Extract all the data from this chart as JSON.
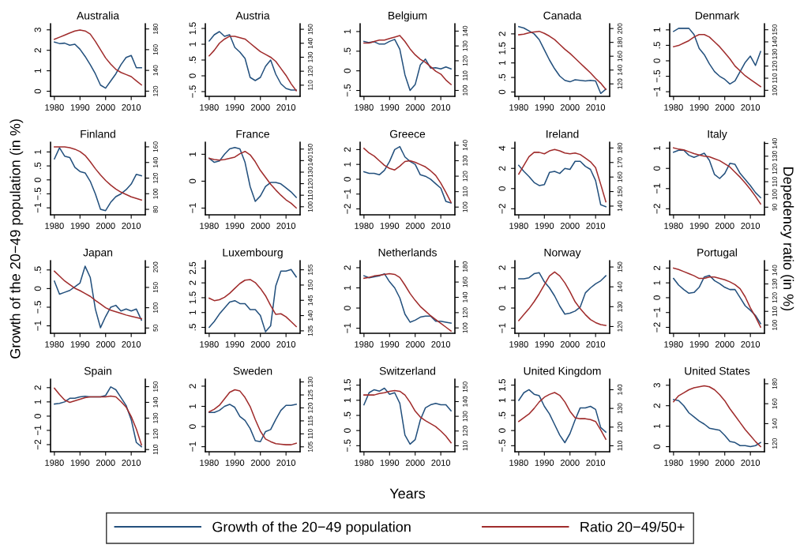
{
  "chart_data": [
    {
      "type": "line",
      "title": "Australia",
      "legend": "bottom",
      "x": [
        1980,
        1982,
        1984,
        1986,
        1988,
        1990,
        1992,
        1994,
        1996,
        1998,
        2000,
        2002,
        2004,
        2006,
        2008,
        2010,
        2012,
        2014
      ],
      "xlim": [
        1978.5,
        2015.5
      ],
      "xticks": [
        1980,
        1990,
        2000,
        2010
      ],
      "ylim": [
        -0.25,
        3.3
      ],
      "yticks": [
        0,
        1,
        2,
        3
      ],
      "y2lim": [
        115,
        185
      ],
      "y2ticks": [
        120,
        140,
        160,
        180
      ],
      "series": [
        {
          "name": "Growth of the 20−49 population",
          "color": "#23507d",
          "values": [
            2.4,
            2.33,
            2.35,
            2.25,
            2.3,
            2.05,
            1.7,
            1.3,
            0.85,
            0.3,
            0.15,
            0.5,
            0.85,
            1.3,
            1.65,
            1.75,
            1.15,
            1.15
          ]
        },
        {
          "name": "Ratio 20−49/50+",
          "color": "#a02c2c",
          "axis": "y2",
          "values": [
            170,
            172,
            174,
            176,
            178,
            179,
            178,
            175,
            168,
            160,
            152,
            146,
            141,
            138,
            136,
            134,
            130,
            126
          ]
        }
      ]
    },
    {
      "type": "line",
      "title": "Austria",
      "x": [
        1980,
        1982,
        1984,
        1986,
        1988,
        1990,
        1992,
        1994,
        1996,
        1998,
        2000,
        2002,
        2004,
        2006,
        2008,
        2010,
        2012,
        2014
      ],
      "xlim": [
        1978.5,
        2015.5
      ],
      "xticks": [
        1980,
        1990,
        2000,
        2010
      ],
      "ylim": [
        -0.65,
        1.65
      ],
      "yticks": [
        {
          "value": -0.5,
          "label": "−.5"
        },
        0,
        {
          "value": 0.5,
          "label": ".5"
        },
        1,
        1.5
      ],
      "y2lim": [
        102,
        154
      ],
      "y2ticks": [
        110,
        120,
        130,
        140,
        150
      ],
      "series": [
        {
          "color": "#23507d",
          "values": [
            1.1,
            1.3,
            1.4,
            1.25,
            1.3,
            0.9,
            0.75,
            0.55,
            -0.05,
            -0.15,
            -0.05,
            0.3,
            0.5,
            0.05,
            -0.25,
            -0.4,
            -0.45,
            -0.45
          ]
        },
        {
          "color": "#a02c2c",
          "axis": "y2",
          "values": [
            131,
            135,
            140,
            143,
            145,
            145,
            144,
            143,
            140,
            137,
            134,
            132,
            130,
            127,
            122,
            117,
            111,
            106
          ]
        }
      ]
    },
    {
      "type": "line",
      "title": "Belgium",
      "x": [
        1980,
        1982,
        1984,
        1986,
        1988,
        1990,
        1992,
        1994,
        1996,
        1998,
        2000,
        2002,
        2004,
        2006,
        2008,
        2010,
        2012,
        2014
      ],
      "xlim": [
        1978.5,
        2015.5
      ],
      "xticks": [
        1980,
        1990,
        2000,
        2010
      ],
      "ylim": [
        -0.65,
        1.2
      ],
      "yticks": [
        {
          "value": -0.5,
          "label": "−.5"
        },
        0,
        {
          "value": 0.5,
          "label": ".5"
        },
        1
      ],
      "y2lim": [
        96,
        145
      ],
      "y2ticks": [
        100,
        110,
        120,
        130,
        140
      ],
      "series": [
        {
          "color": "#23507d",
          "values": [
            0.75,
            0.72,
            0.74,
            0.68,
            0.68,
            0.75,
            0.8,
            0.55,
            -0.1,
            -0.5,
            -0.35,
            0.15,
            0.3,
            0.07,
            0.08,
            0.05,
            0.1,
            0.05
          ]
        },
        {
          "color": "#a02c2c",
          "axis": "y2",
          "values": [
            132,
            132,
            133,
            134,
            134,
            135,
            136,
            137,
            133,
            128,
            124,
            121,
            119,
            116,
            113,
            111,
            107,
            104
          ]
        }
      ]
    },
    {
      "type": "line",
      "title": "Canada",
      "x": [
        1980,
        1982,
        1984,
        1986,
        1988,
        1990,
        1992,
        1994,
        1996,
        1998,
        2000,
        2002,
        2004,
        2006,
        2008,
        2010,
        2012,
        2014
      ],
      "xlim": [
        1978.5,
        2015.5
      ],
      "xticks": [
        1980,
        1990,
        2000,
        2010
      ],
      "ylim": [
        -0.15,
        2.35
      ],
      "yticks": [
        0,
        {
          "value": 0.5,
          "label": ".5"
        },
        1,
        1.5,
        2
      ],
      "y2lim": [
        102,
        207
      ],
      "y2ticks": [
        120,
        140,
        160,
        180,
        200
      ],
      "series": [
        {
          "color": "#23507d",
          "values": [
            2.25,
            2.2,
            2.1,
            2.0,
            1.8,
            1.45,
            1.1,
            0.8,
            0.55,
            0.4,
            0.35,
            0.42,
            0.4,
            0.38,
            0.4,
            0.38,
            -0.05,
            0.1
          ]
        },
        {
          "color": "#a02c2c",
          "axis": "y2",
          "values": [
            191,
            192,
            194,
            195,
            196,
            193,
            189,
            184,
            177,
            170,
            164,
            157,
            150,
            143,
            136,
            128,
            121,
            112
          ]
        }
      ]
    },
    {
      "type": "line",
      "title": "Denmark",
      "x": [
        1980,
        1982,
        1984,
        1986,
        1988,
        1990,
        1992,
        1994,
        1996,
        1998,
        2000,
        2002,
        2004,
        2006,
        2008,
        2010,
        2012,
        2014
      ],
      "xlim": [
        1978.5,
        2015.5
      ],
      "xticks": [
        1980,
        1990,
        2000,
        2010
      ],
      "ylim": [
        -1.15,
        1.2
      ],
      "yticks": [
        {
          "value": -1,
          "label": "−1"
        },
        {
          "value": -0.5,
          "label": "−.5"
        },
        0,
        {
          "value": 0.5,
          "label": ".5"
        },
        1
      ],
      "y2lim": [
        95,
        155
      ],
      "y2ticks": [
        100,
        110,
        120,
        130,
        140,
        150
      ],
      "series": [
        {
          "color": "#23507d",
          "values": [
            0.95,
            1.05,
            1.05,
            1.05,
            0.85,
            0.4,
            0.2,
            -0.1,
            -0.35,
            -0.5,
            -0.6,
            -0.75,
            -0.65,
            -0.35,
            -0.05,
            0.15,
            -0.15,
            0.3
          ]
        },
        {
          "color": "#a02c2c",
          "axis": "y2",
          "values": [
            136,
            137,
            139,
            141,
            144,
            146,
            146,
            144,
            140,
            136,
            131,
            126,
            120,
            116,
            112,
            109,
            106,
            103
          ]
        }
      ]
    },
    {
      "type": "line",
      "title": "Finland",
      "x": [
        1980,
        1982,
        1984,
        1986,
        1988,
        1990,
        1992,
        1994,
        1996,
        1998,
        2000,
        2002,
        2004,
        2006,
        2008,
        2010,
        2012,
        2014
      ],
      "xlim": [
        1978.5,
        2015.5
      ],
      "xticks": [
        1980,
        1990,
        2000,
        2010
      ],
      "ylim": [
        -1.25,
        1.35
      ],
      "yticks": [
        {
          "value": -1,
          "label": "−1"
        },
        {
          "value": -0.5,
          "label": "−.5"
        },
        0,
        {
          "value": 0.5,
          "label": ".5"
        },
        1
      ],
      "y2lim": [
        73,
        166
      ],
      "y2ticks": [
        80,
        100,
        120,
        140,
        160
      ],
      "series": [
        {
          "color": "#23507d",
          "values": [
            0.75,
            1.15,
            0.85,
            0.8,
            0.45,
            0.3,
            0.25,
            -0.05,
            -0.5,
            -1.05,
            -1.1,
            -0.8,
            -0.6,
            -0.5,
            -0.35,
            -0.15,
            0.2,
            0.15
          ]
        },
        {
          "color": "#a02c2c",
          "axis": "y2",
          "values": [
            160,
            160,
            160,
            159,
            157,
            154,
            149,
            141,
            132,
            124,
            117,
            111,
            106,
            102,
            99,
            96,
            94,
            92
          ]
        }
      ]
    },
    {
      "type": "line",
      "title": "France",
      "x": [
        1980,
        1982,
        1984,
        1986,
        1988,
        1990,
        1992,
        1994,
        1996,
        1998,
        2000,
        2002,
        2004,
        2006,
        2008,
        2010,
        2012,
        2014
      ],
      "xlim": [
        1978.5,
        2015.5
      ],
      "xticks": [
        1980,
        1990,
        2000,
        2010
      ],
      "ylim": [
        -1.25,
        1.45
      ],
      "yticks": [
        {
          "value": -1,
          "label": "−1"
        },
        0,
        1
      ],
      "y2lim": [
        93,
        156
      ],
      "y2ticks": [
        100,
        110,
        120,
        130,
        140,
        150
      ],
      "series": [
        {
          "color": "#23507d",
          "values": [
            0.85,
            0.7,
            0.75,
            1.0,
            1.2,
            1.25,
            1.2,
            0.7,
            -0.2,
            -0.75,
            -0.55,
            -0.2,
            -0.05,
            -0.05,
            -0.1,
            -0.25,
            -0.4,
            -0.6
          ]
        },
        {
          "color": "#a02c2c",
          "axis": "y2",
          "values": [
            142,
            141,
            140.5,
            141,
            142,
            143,
            146,
            148,
            145,
            139,
            131.5,
            125.5,
            119.5,
            114.5,
            110,
            106,
            103,
            99
          ]
        }
      ]
    },
    {
      "type": "line",
      "title": "Greece",
      "x": [
        1980,
        1982,
        1984,
        1986,
        1988,
        1990,
        1992,
        1994,
        1996,
        1998,
        2000,
        2002,
        2004,
        2006,
        2008,
        2010,
        2012,
        2014
      ],
      "xlim": [
        1978.5,
        2015.5
      ],
      "xticks": [
        1980,
        1990,
        2000,
        2010
      ],
      "ylim": [
        -2.4,
        2.5
      ],
      "yticks": [
        {
          "value": -2,
          "label": "−2"
        },
        {
          "value": -1,
          "label": "−1"
        },
        0,
        1,
        2
      ],
      "y2lim": [
        95,
        142
      ],
      "y2ticks": [
        100,
        110,
        120,
        130,
        140
      ],
      "series": [
        {
          "color": "#23507d",
          "values": [
            0.5,
            0.4,
            0.4,
            0.3,
            0.6,
            1.2,
            2.0,
            2.2,
            1.5,
            1.2,
            1.0,
            0.3,
            0.2,
            0.0,
            -0.3,
            -0.6,
            -1.5,
            -1.6
          ]
        },
        {
          "color": "#a02c2c",
          "axis": "y2",
          "values": [
            138,
            135,
            133,
            130,
            127,
            125,
            124,
            126.5,
            129.5,
            130,
            129,
            127.5,
            126,
            123.5,
            120.5,
            115.5,
            109.5,
            103
          ]
        }
      ]
    },
    {
      "type": "line",
      "title": "Ireland",
      "x": [
        1980,
        1982,
        1984,
        1986,
        1988,
        1990,
        1992,
        1994,
        1996,
        1998,
        2000,
        2002,
        2004,
        2006,
        2008,
        2010,
        2012,
        2014
      ],
      "xlim": [
        1978.5,
        2015.5
      ],
      "xticks": [
        1980,
        1990,
        2000,
        2010
      ],
      "ylim": [
        -2.6,
        4.6
      ],
      "yticks": [
        {
          "value": -2,
          "label": "−2"
        },
        0,
        2,
        4
      ],
      "y2lim": [
        134,
        184
      ],
      "y2ticks": [
        140,
        150,
        160,
        170,
        180
      ],
      "series": [
        {
          "color": "#23507d",
          "values": [
            2.3,
            1.7,
            1.2,
            0.6,
            0.3,
            0.4,
            1.6,
            1.7,
            1.5,
            2.0,
            1.9,
            2.7,
            2.7,
            2.2,
            1.9,
            0.8,
            -1.6,
            -1.8
          ]
        },
        {
          "color": "#a02c2c",
          "axis": "y2",
          "values": [
            162,
            168,
            174,
            177,
            177,
            176,
            178,
            179,
            178,
            176.5,
            176,
            176.5,
            175.5,
            173,
            170.5,
            166.5,
            155,
            143
          ]
        }
      ]
    },
    {
      "type": "line",
      "title": "Italy",
      "x": [
        1980,
        1982,
        1984,
        1986,
        1988,
        1990,
        1992,
        1994,
        1996,
        1998,
        2000,
        2002,
        2004,
        2006,
        2008,
        2010,
        2012,
        2014
      ],
      "xlim": [
        1978.5,
        2015.5
      ],
      "xticks": [
        1980,
        1990,
        2000,
        2010
      ],
      "ylim": [
        -2.3,
        1.3
      ],
      "yticks": [
        {
          "value": -2,
          "label": "−2"
        },
        {
          "value": -1,
          "label": "−1"
        },
        0,
        1
      ],
      "y2lim": [
        84,
        141
      ],
      "y2ticks": [
        90,
        100,
        110,
        120,
        130,
        140
      ],
      "series": [
        {
          "color": "#23507d",
          "values": [
            0.8,
            0.9,
            0.9,
            0.65,
            0.55,
            0.65,
            0.75,
            0.4,
            -0.3,
            -0.5,
            -0.25,
            0.25,
            0.2,
            -0.25,
            -0.55,
            -0.85,
            -1.2,
            -1.45
          ]
        },
        {
          "color": "#a02c2c",
          "axis": "y2",
          "values": [
            136.5,
            135.5,
            135,
            133.5,
            132,
            131,
            130,
            129.5,
            128,
            126.5,
            124,
            121.5,
            117.5,
            113.5,
            109,
            104,
            98.5,
            92.5
          ]
        }
      ]
    },
    {
      "type": "line",
      "title": "Japan",
      "ylabel": "Growth of the 20−49 population (in %)",
      "x": [
        1980,
        1982,
        1984,
        1986,
        1988,
        1990,
        1992,
        1994,
        1996,
        1998,
        2000,
        2002,
        2004,
        2006,
        2008,
        2010,
        2012,
        2014
      ],
      "xlim": [
        1978.5,
        2015.5
      ],
      "xticks": [
        1980,
        1990,
        2000,
        2010
      ],
      "ylim": [
        -1.2,
        0.75
      ],
      "yticks": [
        {
          "value": -1,
          "label": "−1"
        },
        {
          "value": -0.5,
          "label": "−.5"
        },
        0,
        {
          "value": 0.5,
          "label": ".5"
        }
      ],
      "y2lim": [
        37,
        216
      ],
      "y2ticks": [
        50,
        100,
        150,
        200
      ],
      "series": [
        {
          "color": "#23507d",
          "values": [
            0.2,
            -0.15,
            -0.1,
            -0.05,
            0.05,
            0.15,
            0.6,
            0.3,
            -0.55,
            -1.05,
            -0.75,
            -0.5,
            -0.45,
            -0.6,
            -0.55,
            -0.6,
            -0.55,
            -0.85
          ]
        },
        {
          "color": "#a02c2c",
          "axis": "y2",
          "values": [
            190,
            178,
            166,
            157,
            148,
            142,
            135,
            128,
            118,
            109,
            100,
            94,
            90,
            86,
            82,
            79,
            76,
            73
          ]
        }
      ]
    },
    {
      "type": "line",
      "title": "Luxembourg",
      "x": [
        1980,
        1982,
        1984,
        1986,
        1988,
        1990,
        1992,
        1994,
        1996,
        1998,
        2000,
        2002,
        2004,
        2006,
        2008,
        2010,
        2012,
        2014
      ],
      "xlim": [
        1978.5,
        2015.5
      ],
      "xticks": [
        1980,
        1990,
        2000,
        2010
      ],
      "ylim": [
        0.3,
        2.75
      ],
      "yticks": [
        {
          "value": 0.5,
          "label": ".5"
        },
        1,
        1.5,
        2,
        2.5
      ],
      "y2lim": [
        134.2,
        158
      ],
      "y2ticks": [
        135,
        140,
        145,
        150,
        155
      ],
      "series": [
        {
          "color": "#23507d",
          "values": [
            0.5,
            0.7,
            0.95,
            1.15,
            1.35,
            1.4,
            1.3,
            1.3,
            1.1,
            1.1,
            0.9,
            0.35,
            0.55,
            1.9,
            2.4,
            2.4,
            2.45,
            2.2
          ]
        },
        {
          "color": "#a02c2c",
          "axis": "y2",
          "values": [
            145.7,
            144.9,
            145.2,
            146,
            147.3,
            148.9,
            150.5,
            151.6,
            151.8,
            150.8,
            148.9,
            146.5,
            143.3,
            140.4,
            140.6,
            139.6,
            138,
            136.4
          ]
        }
      ]
    },
    {
      "type": "line",
      "title": "Netherlands",
      "x": [
        1980,
        1982,
        1984,
        1986,
        1988,
        1990,
        1992,
        1994,
        1996,
        1998,
        2000,
        2002,
        2004,
        2006,
        2008,
        2010,
        2012,
        2014
      ],
      "xlim": [
        1978.5,
        2015.5
      ],
      "xticks": [
        1980,
        1990,
        2000,
        2010
      ],
      "ylim": [
        -1.25,
        2.35
      ],
      "yticks": [
        {
          "value": -1,
          "label": "−1"
        },
        0,
        1,
        2
      ],
      "y2lim": [
        93,
        188
      ],
      "y2ticks": [
        100,
        120,
        140,
        160,
        180
      ],
      "series": [
        {
          "color": "#23507d",
          "values": [
            1.6,
            1.5,
            1.55,
            1.6,
            1.7,
            1.3,
            1.0,
            0.5,
            -0.3,
            -0.7,
            -0.6,
            -0.45,
            -0.4,
            -0.4,
            -0.65,
            -0.65,
            -0.7,
            -0.75
          ]
        },
        {
          "color": "#a02c2c",
          "axis": "y2",
          "values": [
            165,
            166,
            168,
            169,
            170,
            171,
            170,
            166,
            156,
            145,
            136,
            128,
            122,
            116,
            111,
            106,
            101,
            96
          ]
        }
      ]
    },
    {
      "type": "line",
      "title": "Norway",
      "x": [
        1980,
        1982,
        1984,
        1986,
        1988,
        1990,
        1992,
        1994,
        1996,
        1998,
        2000,
        2002,
        2004,
        2006,
        2008,
        2010,
        2012,
        2014
      ],
      "xlim": [
        1978.5,
        2015.5
      ],
      "xticks": [
        1980,
        1990,
        2000,
        2010
      ],
      "ylim": [
        -1.25,
        2.35
      ],
      "yticks": [
        {
          "value": -1,
          "label": "−1"
        },
        0,
        1,
        2
      ],
      "y2lim": [
        116.6,
        153.2
      ],
      "y2ticks": [
        120,
        130,
        140,
        150
      ],
      "series": [
        {
          "color": "#23507d",
          "values": [
            1.45,
            1.45,
            1.5,
            1.7,
            1.75,
            1.3,
            1.0,
            0.6,
            0.1,
            -0.3,
            -0.25,
            -0.15,
            0.05,
            0.75,
            1.0,
            1.2,
            1.35,
            1.6
          ]
        },
        {
          "color": "#a02c2c",
          "axis": "y2",
          "values": [
            123,
            126,
            129,
            132.5,
            136.5,
            141,
            145.5,
            147.5,
            145.5,
            142,
            137.5,
            132.5,
            129,
            126,
            123.5,
            122,
            121,
            120.5
          ]
        }
      ]
    },
    {
      "type": "line",
      "title": "Portugal",
      "y2label": "Depedency ratio (in %)",
      "x": [
        1980,
        1982,
        1984,
        1986,
        1988,
        1990,
        1992,
        1994,
        1996,
        1998,
        2000,
        2002,
        2004,
        2006,
        2008,
        2010,
        2012,
        2014
      ],
      "xlim": [
        1978.5,
        2015.5
      ],
      "xticks": [
        1980,
        1990,
        2000,
        2010
      ],
      "ylim": [
        -2.4,
        2.5
      ],
      "yticks": [
        {
          "value": -2,
          "label": "−2"
        },
        {
          "value": -1,
          "label": "−1"
        },
        0,
        1,
        2
      ],
      "y2lim": [
        94,
        147
      ],
      "y2ticks": [
        100,
        110,
        120,
        130,
        140
      ],
      "series": [
        {
          "color": "#23507d",
          "values": [
            1.3,
            0.85,
            0.55,
            0.3,
            0.35,
            0.7,
            1.4,
            1.5,
            1.15,
            0.95,
            0.7,
            0.55,
            0.55,
            0.0,
            -0.55,
            -0.85,
            -1.2,
            -1.75
          ]
        },
        {
          "color": "#a02c2c",
          "axis": "y2",
          "values": [
            141.5,
            140.5,
            139,
            137.5,
            136,
            134,
            134,
            135,
            135,
            134,
            133,
            131.5,
            129.5,
            126.5,
            120.5,
            112.5,
            106,
            98.5
          ]
        }
      ]
    },
    {
      "type": "line",
      "title": "Spain",
      "x": [
        1980,
        1982,
        1984,
        1986,
        1988,
        1990,
        1992,
        1994,
        1996,
        1998,
        2000,
        2002,
        2004,
        2006,
        2008,
        2010,
        2012,
        2014
      ],
      "xlim": [
        1978.5,
        2015.5
      ],
      "xticks": [
        1980,
        1990,
        2000,
        2010
      ],
      "ylim": [
        -2.5,
        2.6
      ],
      "yticks": [
        {
          "value": -2,
          "label": "−2"
        },
        {
          "value": -1,
          "label": "−1"
        },
        0,
        1,
        2
      ],
      "y2lim": [
        108.6,
        154.8
      ],
      "y2ticks": [
        110,
        120,
        130,
        140,
        150
      ],
      "series": [
        {
          "color": "#23507d",
          "values": [
            0.85,
            0.9,
            1.0,
            1.25,
            1.25,
            1.35,
            1.4,
            1.35,
            1.35,
            1.35,
            1.45,
            2.05,
            1.85,
            1.3,
            0.75,
            -0.25,
            -1.85,
            -2.15
          ]
        },
        {
          "color": "#a02c2c",
          "axis": "y2",
          "values": [
            149,
            145,
            141.5,
            140,
            141,
            142,
            143,
            143.5,
            143.5,
            143.5,
            143.5,
            144,
            143.5,
            140.5,
            137,
            131,
            123,
            113
          ]
        }
      ]
    },
    {
      "type": "line",
      "title": "Sweden",
      "x": [
        1980,
        1982,
        1984,
        1986,
        1988,
        1990,
        1992,
        1994,
        1996,
        1998,
        2000,
        2002,
        2004,
        2006,
        2008,
        2010,
        2012,
        2014
      ],
      "xlim": [
        1978.5,
        2015.5
      ],
      "xticks": [
        1980,
        1990,
        2000,
        2010
      ],
      "ylim": [
        -1.25,
        2.35
      ],
      "yticks": [
        {
          "value": -1,
          "label": "−1"
        },
        0,
        1,
        2
      ],
      "y2lim": [
        103.1,
        131.1
      ],
      "y2ticks": [
        105,
        110,
        115,
        120,
        125,
        130
      ],
      "series": [
        {
          "color": "#23507d",
          "values": [
            0.7,
            0.7,
            0.8,
            1.0,
            1.1,
            0.95,
            0.5,
            0.3,
            -0.1,
            -0.7,
            -0.75,
            -0.25,
            -0.15,
            0.35,
            0.8,
            1.05,
            1.05,
            1.1
          ]
        },
        {
          "color": "#a02c2c",
          "axis": "y2",
          "values": [
            118.5,
            119.5,
            121,
            123.5,
            126,
            127,
            126.5,
            124,
            120.5,
            115.5,
            111,
            108,
            107,
            106.2,
            106,
            105.8,
            105.8,
            106.4
          ]
        }
      ]
    },
    {
      "type": "line",
      "title": "Switzerland",
      "xlabel": "Years",
      "x": [
        1980,
        1982,
        1984,
        1986,
        1988,
        1990,
        1992,
        1994,
        1996,
        1998,
        2000,
        2002,
        2004,
        2006,
        2008,
        2010,
        2012,
        2014
      ],
      "xlim": [
        1978.5,
        2015.5
      ],
      "xticks": [
        1980,
        1990,
        2000,
        2010
      ],
      "ylim": [
        -0.7,
        1.7
      ],
      "yticks": [
        {
          "value": -0.5,
          "label": "−.5"
        },
        0,
        {
          "value": 0.5,
          "label": ".5"
        },
        1,
        1.5
      ],
      "y2lim": [
        105.9,
        155.3
      ],
      "y2ticks": [
        110,
        120,
        130,
        140,
        150
      ],
      "series": [
        {
          "color": "#23507d",
          "values": [
            0.85,
            1.25,
            1.35,
            1.3,
            1.4,
            1.2,
            1.25,
            0.9,
            -0.15,
            -0.45,
            -0.3,
            0.35,
            0.75,
            0.85,
            0.9,
            0.85,
            0.85,
            0.65
          ]
        },
        {
          "color": "#a02c2c",
          "axis": "y2",
          "values": [
            144.5,
            144.5,
            144.5,
            145.5,
            146,
            147,
            147.5,
            147,
            144.5,
            139.5,
            133.5,
            129.5,
            127,
            125,
            123,
            120,
            116.5,
            112
          ]
        }
      ]
    },
    {
      "type": "line",
      "title": "United Kingdom",
      "x": [
        1980,
        1982,
        1984,
        1986,
        1988,
        1990,
        1992,
        1994,
        1996,
        1998,
        2000,
        2002,
        2004,
        2006,
        2008,
        2010,
        2012,
        2014
      ],
      "xlim": [
        1978.5,
        2015.5
      ],
      "xticks": [
        1980,
        1990,
        2000,
        2010
      ],
      "ylim": [
        -0.7,
        1.7
      ],
      "yticks": [
        {
          "value": -0.5,
          "label": "−.5"
        },
        0,
        {
          "value": 0.5,
          "label": ".5"
        },
        1,
        1.5
      ],
      "y2lim": [
        106.8,
        145.7
      ],
      "y2ticks": [
        110,
        120,
        130,
        140
      ],
      "series": [
        {
          "color": "#23507d",
          "values": [
            1.0,
            1.25,
            1.35,
            1.2,
            1.15,
            0.8,
            0.55,
            0.2,
            -0.15,
            -0.4,
            -0.1,
            0.35,
            0.75,
            0.75,
            0.8,
            0.7,
            0.1,
            -0.05
          ]
        },
        {
          "color": "#a02c2c",
          "axis": "y2",
          "values": [
            123,
            125,
            127,
            130,
            133.5,
            136,
            137.5,
            138.5,
            137,
            133.5,
            128.5,
            125,
            124.5,
            124.5,
            124,
            123,
            118.5,
            113.5
          ]
        }
      ]
    },
    {
      "type": "line",
      "title": "United States",
      "x": [
        1980,
        1982,
        1984,
        1986,
        1988,
        1990,
        1992,
        1994,
        1996,
        1998,
        2000,
        2002,
        2004,
        2006,
        2008,
        2010,
        2012,
        2014
      ],
      "xlim": [
        1978.5,
        2015.5
      ],
      "xticks": [
        1980,
        1990,
        2000,
        2010
      ],
      "ylim": [
        -0.25,
        3.3
      ],
      "yticks": [
        0,
        1,
        2,
        3
      ],
      "y2lim": [
        111.8,
        184.7
      ],
      "y2ticks": [
        120,
        140,
        160,
        180
      ],
      "series": [
        {
          "color": "#23507d",
          "values": [
            2.3,
            2.25,
            2.0,
            1.65,
            1.45,
            1.25,
            1.1,
            0.9,
            0.85,
            0.8,
            0.55,
            0.25,
            0.2,
            0.05,
            0.05,
            0.0,
            0.05,
            0.2
          ]
        },
        {
          "color": "#a02c2c",
          "axis": "y2",
          "values": [
            162,
            168,
            171,
            174,
            176,
            177,
            178,
            177,
            174,
            169,
            163,
            155,
            148,
            141,
            134,
            128,
            122,
            117
          ]
        }
      ]
    }
  ]
}
